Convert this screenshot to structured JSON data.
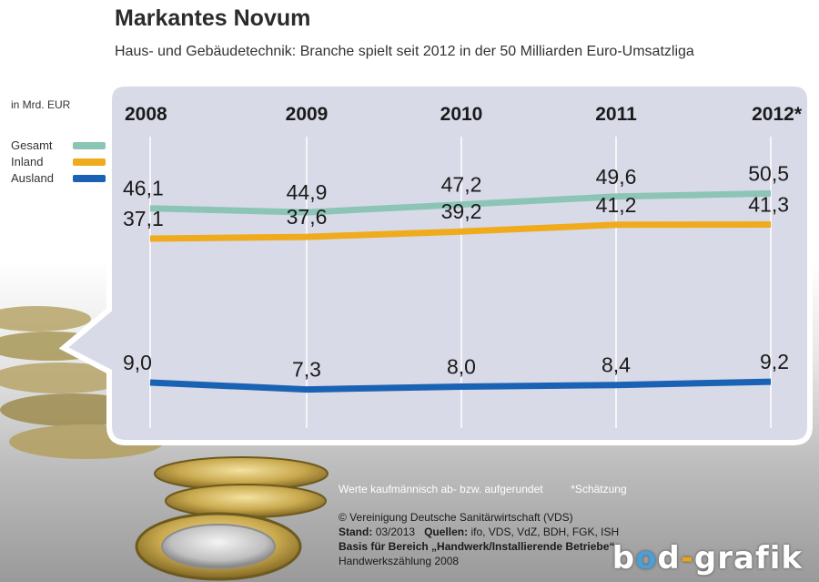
{
  "header": {
    "title": "Markantes Novum",
    "subtitle": "Haus- und Gebäudetechnik: Branche spielt seit 2012 in der 50 Milliarden Euro-Umsatzliga"
  },
  "unit_label": "in Mrd. EUR",
  "colors": {
    "gesamt": "#8cc5b6",
    "inland": "#f0ab1d",
    "ausland": "#1a62b3",
    "panel": "#d9dae8",
    "axis_text": "#1a1a1a"
  },
  "chart_data": {
    "type": "line",
    "categories": [
      "2008",
      "2009",
      "2010",
      "2011",
      "2012*"
    ],
    "series": [
      {
        "name": "Gesamt",
        "values": [
          46.1,
          44.9,
          47.2,
          49.6,
          50.5
        ],
        "labels": [
          "46,1",
          "44,9",
          "47,2",
          "49,6",
          "50,5"
        ]
      },
      {
        "name": "Inland",
        "values": [
          37.1,
          37.6,
          39.2,
          41.2,
          41.3
        ],
        "labels": [
          "37,1",
          "37,6",
          "39,2",
          "41,2",
          "41,3"
        ]
      },
      {
        "name": "Ausland",
        "values": [
          9.0,
          7.3,
          8.0,
          8.4,
          9.2
        ],
        "labels": [
          "9,0",
          "7,3",
          "8,0",
          "8,4",
          "9,2"
        ]
      }
    ],
    "ylabel": "in Mrd. EUR",
    "legend": "left",
    "grid": "vertical"
  },
  "footer": {
    "rounding_note": "Werte kaufmännisch ab- bzw. aufgerundet",
    "estimate_note": "*Schätzung",
    "copyright": "© Vereinigung Deutsche Sanitärwirtschaft (VDS)",
    "stand_label": "Stand:",
    "stand_value": "03/2013",
    "quellen_label": "Quellen:",
    "quellen_value": "ifo, VDS, VdZ, BDH, FGK, ISH",
    "basis_label": "Basis für Bereich „Handwerk/Installierende Betriebe“:",
    "basis_value": "Handwerkszählung 2008"
  },
  "logo": {
    "b": "b",
    "o1": "o",
    "d": "d",
    "dash": "-",
    "rest": "grafik"
  }
}
